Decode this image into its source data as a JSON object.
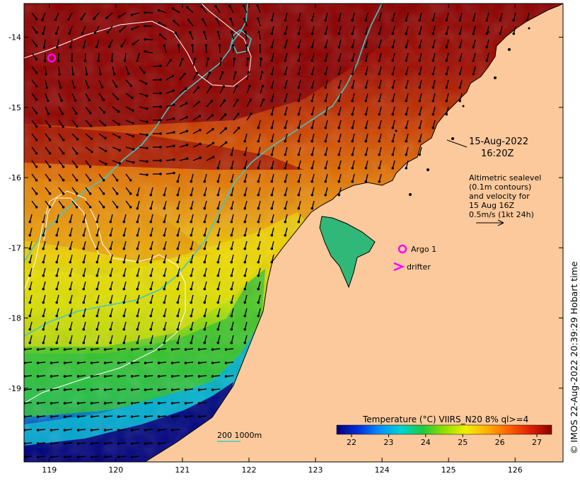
{
  "map": {
    "date": "15-Aug-2022",
    "time": "16:20Z",
    "sealevel_note": [
      "Altimetric sealevel",
      "(0.1m contours)",
      "and velocity for",
      "15 Aug 16Z",
      "0.5m/s (1kt 24h)"
    ],
    "legend": {
      "argo_label": "Argo 1",
      "drifter_label": "drifter",
      "argo_color": "#ff00ff",
      "drifter_color": "#ff00ff"
    },
    "bathymetry_label": "200  1000m",
    "bathymetry_color": "#40c8c8",
    "land_color": "#fbc99b",
    "colorbar": {
      "title": "Temperature (°C) VIIRS_N20 8% ql>=4",
      "ticks": [
        "22",
        "23",
        "24",
        "25",
        "26",
        "27"
      ],
      "range": [
        21.6,
        27.4
      ],
      "colors": [
        "#00007a",
        "#0030d8",
        "#0090ff",
        "#00d4d0",
        "#20c840",
        "#90e000",
        "#f0f000",
        "#ffb000",
        "#ff6000",
        "#e02000",
        "#8a0000"
      ]
    },
    "copyright": "© IMOS 22-Aug-2022 20:39:29 Hobart time"
  },
  "axes": {
    "x_ticks": [
      "119",
      "120",
      "121",
      "122",
      "123",
      "124",
      "125",
      "126"
    ],
    "y_ticks": [
      "-14",
      "-15",
      "-16",
      "-17",
      "-18",
      "-19"
    ],
    "lon_range": [
      118.62,
      126.72
    ],
    "lat_range": [
      -20.05,
      -13.52
    ]
  }
}
